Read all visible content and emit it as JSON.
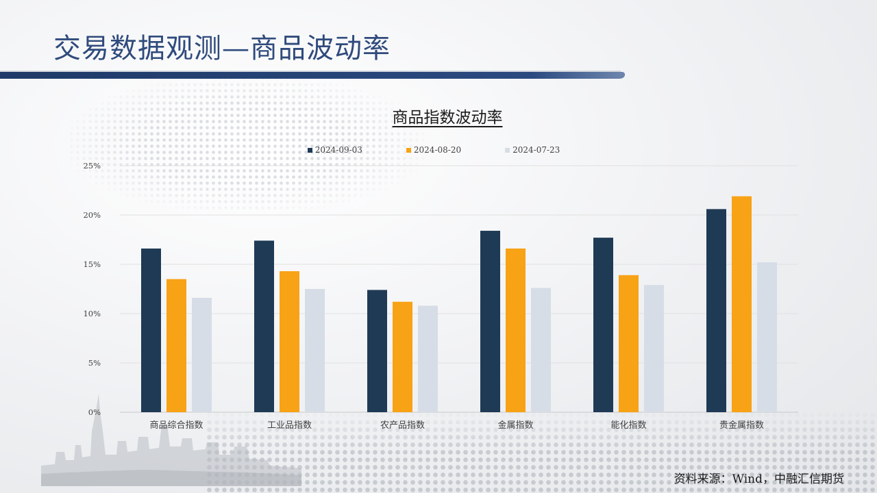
{
  "page": {
    "title": "交易数据观测—商品波动率",
    "source": "资料来源：Wind，中融汇信期货"
  },
  "colors": {
    "title": "#2f4a7c",
    "title_bar": "#1f3a68",
    "series": [
      "#1f3a55",
      "#f8a215",
      "#d6dde6"
    ]
  },
  "chart_data": {
    "type": "bar",
    "title": "商品指数波动率",
    "categories": [
      "商品综合指数",
      "工业品指数",
      "农产品指数",
      "金属指数",
      "能化指数",
      "贵金属指数"
    ],
    "series": [
      {
        "name": "2024-09-03",
        "values": [
          16.6,
          17.4,
          12.4,
          18.4,
          17.7,
          20.6
        ]
      },
      {
        "name": "2024-08-20",
        "values": [
          13.5,
          14.3,
          11.2,
          16.6,
          13.9,
          21.9
        ]
      },
      {
        "name": "2024-07-23",
        "values": [
          11.6,
          12.5,
          10.8,
          12.6,
          12.9,
          15.2
        ]
      }
    ],
    "y_ticks": [
      "0%",
      "5%",
      "10%",
      "15%",
      "20%",
      "25%"
    ],
    "ylim": [
      0,
      25
    ],
    "grid": true,
    "legend_position": "top-center"
  }
}
